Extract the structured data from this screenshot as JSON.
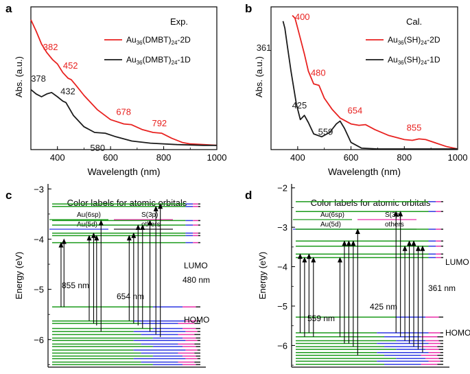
{
  "colors": {
    "red": "#e8211f",
    "black": "#1a1a1a",
    "green": "#1a9a1a",
    "blue": "#2b35e0",
    "magenta": "#e92ba8",
    "gray": "#444444"
  },
  "chart_data": [
    {
      "panel": "a",
      "type": "line",
      "title": "Exp.",
      "xlabel": "Wavelength (nm)",
      "ylabel": "Abs. (a.u.)",
      "xlim": [
        300,
        1000
      ],
      "ylim": [
        0,
        1
      ],
      "xticks": [
        400,
        600,
        800,
        1000
      ],
      "legend": {
        "placement": "top-right"
      },
      "series": [
        {
          "name_base": "Au",
          "name_sub1": "36",
          "name_mid": "(DMBT)",
          "name_sub2": "24",
          "name_tail": "-2D",
          "color": "red",
          "points": [
            [
              300,
              0.91
            ],
            [
              320,
              0.83
            ],
            [
              340,
              0.74
            ],
            [
              360,
              0.68
            ],
            [
              382,
              0.63
            ],
            [
              400,
              0.6
            ],
            [
              420,
              0.54
            ],
            [
              440,
              0.5
            ],
            [
              452,
              0.49
            ],
            [
              470,
              0.45
            ],
            [
              500,
              0.38
            ],
            [
              550,
              0.28
            ],
            [
              600,
              0.21
            ],
            [
              650,
              0.18
            ],
            [
              678,
              0.175
            ],
            [
              720,
              0.14
            ],
            [
              760,
              0.12
            ],
            [
              792,
              0.115
            ],
            [
              830,
              0.08
            ],
            [
              870,
              0.05
            ],
            [
              900,
              0.04
            ],
            [
              950,
              0.035
            ],
            [
              1000,
              0.03
            ]
          ],
          "peaks": [
            {
              "label": "382",
              "x": 382,
              "y": 0.63
            },
            {
              "label": "452",
              "x": 452,
              "y": 0.49
            },
            {
              "label": "678",
              "x": 678,
              "y": 0.175
            },
            {
              "label": "792",
              "x": 792,
              "y": 0.115
            }
          ]
        },
        {
          "name_base": "Au",
          "name_sub1": "36",
          "name_mid": "(DMBT)",
          "name_sub2": "24",
          "name_tail": "-1D",
          "color": "black",
          "points": [
            [
              300,
              0.42
            ],
            [
              320,
              0.39
            ],
            [
              340,
              0.37
            ],
            [
              360,
              0.39
            ],
            [
              378,
              0.4
            ],
            [
              400,
              0.37
            ],
            [
              420,
              0.34
            ],
            [
              432,
              0.33
            ],
            [
              460,
              0.24
            ],
            [
              500,
              0.16
            ],
            [
              540,
              0.12
            ],
            [
              580,
              0.115
            ],
            [
              620,
              0.09
            ],
            [
              680,
              0.06
            ],
            [
              750,
              0.045
            ],
            [
              850,
              0.035
            ],
            [
              950,
              0.03
            ],
            [
              1000,
              0.03
            ]
          ],
          "peaks": [
            {
              "label": "378",
              "x": 378,
              "y": 0.4
            },
            {
              "label": "432",
              "x": 432,
              "y": 0.33
            },
            {
              "label": "580",
              "x": 580,
              "y": 0.115
            }
          ]
        }
      ]
    },
    {
      "panel": "b",
      "type": "line",
      "title": "Cal.",
      "xlabel": "Wavelength (nm)",
      "ylabel": "Abs. (a.u.)",
      "xlim": [
        300,
        1000
      ],
      "ylim": [
        0,
        1
      ],
      "xticks": [
        400,
        600,
        800,
        1000
      ],
      "legend": {
        "placement": "top-right"
      },
      "series": [
        {
          "name_base": "Au",
          "name_sub1": "36",
          "name_mid": "(SH)",
          "name_sub2": "24",
          "name_tail": "-2D",
          "color": "red",
          "points": [
            [
              380,
              0.94
            ],
            [
              390,
              0.92
            ],
            [
              400,
              0.85
            ],
            [
              410,
              0.78
            ],
            [
              425,
              0.67
            ],
            [
              440,
              0.55
            ],
            [
              460,
              0.46
            ],
            [
              480,
              0.45
            ],
            [
              500,
              0.36
            ],
            [
              530,
              0.28
            ],
            [
              560,
              0.22
            ],
            [
              600,
              0.18
            ],
            [
              630,
              0.17
            ],
            [
              654,
              0.175
            ],
            [
              690,
              0.14
            ],
            [
              740,
              0.1
            ],
            [
              800,
              0.07
            ],
            [
              830,
              0.065
            ],
            [
              855,
              0.075
            ],
            [
              880,
              0.07
            ],
            [
              920,
              0.045
            ],
            [
              960,
              0.02
            ],
            [
              1000,
              0.005
            ]
          ],
          "peaks": [
            {
              "label": "400",
              "x": 400,
              "y": 0.85
            },
            {
              "label": "480",
              "x": 480,
              "y": 0.45
            },
            {
              "label": "654",
              "x": 654,
              "y": 0.175
            },
            {
              "label": "855",
              "x": 855,
              "y": 0.075
            }
          ]
        },
        {
          "name_base": "Au",
          "name_sub1": "36",
          "name_mid": "(SH)",
          "name_sub2": "24",
          "name_tail": "-1D",
          "color": "black",
          "points": [
            [
              345,
              0.9
            ],
            [
              352,
              0.85
            ],
            [
              361,
              0.73
            ],
            [
              375,
              0.55
            ],
            [
              395,
              0.32
            ],
            [
              410,
              0.21
            ],
            [
              425,
              0.24
            ],
            [
              440,
              0.19
            ],
            [
              460,
              0.11
            ],
            [
              490,
              0.09
            ],
            [
              520,
              0.12
            ],
            [
              545,
              0.18
            ],
            [
              559,
              0.2
            ],
            [
              575,
              0.15
            ],
            [
              600,
              0.05
            ],
            [
              640,
              0.01
            ],
            [
              700,
              0.005
            ],
            [
              1000,
              0.005
            ]
          ],
          "peaks": [
            {
              "label": "361",
              "x": 361,
              "y": 0.73
            },
            {
              "label": "425",
              "x": 425,
              "y": 0.24
            },
            {
              "label": "559",
              "x": 559,
              "y": 0.2
            }
          ]
        }
      ]
    },
    {
      "panel": "c",
      "type": "energy-level-diagram",
      "title": "Color labels for atomic orbitals",
      "ylabel": "Energy (eV)",
      "ylim": [
        -6.55,
        -2.9
      ],
      "yticks": [
        -6,
        -5,
        -4,
        -3
      ],
      "legend": [
        {
          "label": "Au(6sp)",
          "color": "green"
        },
        {
          "label": "S(3p)",
          "color": "magenta"
        },
        {
          "label": "Au(5d)",
          "color": "blue"
        },
        {
          "label": "others",
          "color": "black"
        }
      ],
      "level_labels": [
        {
          "label": "LUMO",
          "energy": -4.07
        },
        {
          "label": "HOMO",
          "energy": -5.35
        }
      ],
      "unoccupied_levels": [
        -3.3,
        -3.35,
        -3.63,
        -3.72,
        -3.88,
        -3.93,
        -4.07
      ],
      "occupied_levels": [
        -5.35,
        -5.63,
        -5.68,
        -5.78,
        -5.84,
        -5.9,
        -5.97,
        -6.02,
        -6.09,
        -6.14,
        -6.21,
        -6.27,
        -6.33,
        -6.38,
        -6.45,
        -6.5
      ],
      "transition_groups": [
        {
          "label": "855 nm",
          "arrows": [
            [
              0.06,
              -5.35,
              -4.07
            ],
            [
              0.08,
              -5.35,
              -4.0
            ]
          ]
        },
        {
          "label": "654 nm",
          "arrows": [
            [
              0.25,
              -5.63,
              -3.93
            ],
            [
              0.28,
              -5.68,
              -3.88
            ],
            [
              0.3,
              -5.72,
              -3.93
            ],
            [
              0.33,
              -5.84,
              -3.63
            ]
          ]
        },
        {
          "label": "480 nm",
          "arrows": [
            [
              0.52,
              -5.63,
              -3.93
            ],
            [
              0.55,
              -5.68,
              -3.88
            ],
            [
              0.58,
              -5.72,
              -3.72
            ],
            [
              0.61,
              -5.78,
              -3.72
            ],
            [
              0.66,
              -5.84,
              -3.63
            ],
            [
              0.7,
              -5.9,
              -3.35
            ],
            [
              0.73,
              -5.95,
              -3.3
            ]
          ]
        }
      ]
    },
    {
      "panel": "d",
      "type": "energy-level-diagram",
      "title": "Color labels for atomic orbitals",
      "ylabel": "Energy (eV)",
      "ylim": [
        -6.55,
        -1.9
      ],
      "yticks": [
        -6,
        -5,
        -4,
        -3,
        -2
      ],
      "legend": [
        {
          "label": "Au(6sp)",
          "color": "green"
        },
        {
          "label": "S(3p)",
          "color": "magenta"
        },
        {
          "label": "Au(5d)",
          "color": "blue"
        },
        {
          "label": "others",
          "color": "black"
        }
      ],
      "level_labels": [
        {
          "label": "LUMO",
          "energy": -3.77
        },
        {
          "label": "HOMO",
          "energy": -5.28
        }
      ],
      "unoccupied_levels": [
        -2.35,
        -2.6,
        -3.05,
        -3.35,
        -3.48,
        -3.68,
        -3.77
      ],
      "occupied_levels": [
        -5.28,
        -5.68,
        -5.78,
        -5.88,
        -5.95,
        -6.03,
        -6.1,
        -6.18,
        -6.25,
        -6.33,
        -6.4,
        -6.48
      ],
      "transition_groups": [
        {
          "label": "559 nm",
          "arrows": [
            [
              0.03,
              -5.68,
              -3.68
            ],
            [
              0.06,
              -5.78,
              -3.77
            ],
            [
              0.09,
              -5.68,
              -3.68
            ],
            [
              0.12,
              -5.78,
              -3.77
            ]
          ]
        },
        {
          "label": "425 nm",
          "arrows": [
            [
              0.3,
              -5.78,
              -3.77
            ],
            [
              0.33,
              -5.95,
              -3.35
            ],
            [
              0.36,
              -5.95,
              -3.35
            ],
            [
              0.39,
              -6.03,
              -3.35
            ],
            [
              0.42,
              -6.25,
              -3.05
            ]
          ]
        },
        {
          "label": "361 nm",
          "arrows": [
            [
              0.68,
              -5.68,
              -2.6
            ],
            [
              0.71,
              -5.78,
              -2.6
            ],
            [
              0.74,
              -5.88,
              -3.48
            ],
            [
              0.77,
              -5.95,
              -3.35
            ],
            [
              0.8,
              -6.03,
              -3.35
            ],
            [
              0.83,
              -6.1,
              -3.48
            ],
            [
              0.86,
              -6.18,
              -3.48
            ]
          ]
        }
      ]
    }
  ]
}
